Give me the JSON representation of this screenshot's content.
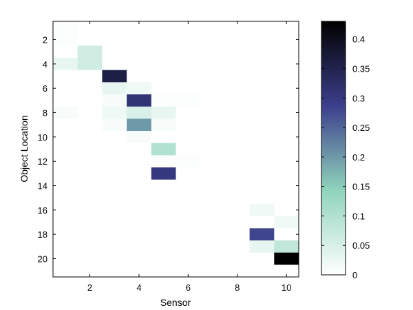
{
  "chart_data": {
    "type": "heatmap",
    "xlabel": "Sensor",
    "ylabel": "Object Location",
    "x_range": [
      0.5,
      10.5
    ],
    "y_range": [
      0.5,
      21.5
    ],
    "y_reversed": true,
    "x_ticks": [
      2,
      4,
      6,
      8,
      10
    ],
    "y_ticks": [
      2,
      4,
      6,
      8,
      10,
      12,
      14,
      16,
      18,
      20
    ],
    "x_values": [
      1,
      2,
      3,
      4,
      5,
      6,
      7,
      8,
      9,
      10
    ],
    "y_values": [
      1,
      2,
      3,
      4,
      5,
      6,
      7,
      8,
      9,
      10,
      11,
      12,
      13,
      14,
      15,
      16,
      17,
      18,
      19,
      20,
      21
    ],
    "values": [
      [
        0.005,
        0,
        0,
        0,
        0,
        0,
        0,
        0,
        0,
        0
      ],
      [
        0.005,
        0,
        0,
        0,
        0,
        0,
        0,
        0,
        0,
        0
      ],
      [
        0,
        0.06,
        0,
        0,
        0,
        0,
        0,
        0,
        0,
        0
      ],
      [
        0.03,
        0.06,
        0,
        0,
        0,
        0,
        0,
        0,
        0,
        0
      ],
      [
        0,
        0,
        0.36,
        0,
        0,
        0,
        0,
        0,
        0,
        0
      ],
      [
        0,
        0,
        0.03,
        0.02,
        0,
        0,
        0,
        0,
        0,
        0
      ],
      [
        0,
        0,
        0.01,
        0.31,
        0.005,
        0.005,
        0,
        0,
        0,
        0
      ],
      [
        0.01,
        0,
        0.02,
        0.05,
        0.03,
        0,
        0,
        0,
        0,
        0
      ],
      [
        0,
        0,
        0.01,
        0.2,
        0.01,
        0,
        0,
        0,
        0,
        0
      ],
      [
        0,
        0,
        0,
        0.01,
        0,
        0,
        0,
        0,
        0,
        0
      ],
      [
        0,
        0,
        0,
        0,
        0.1,
        0,
        0,
        0,
        0,
        0
      ],
      [
        0,
        0,
        0,
        0,
        0.005,
        0.005,
        0,
        0,
        0,
        0
      ],
      [
        0,
        0,
        0,
        0,
        0.3,
        0,
        0,
        0,
        0,
        0
      ],
      [
        0,
        0,
        0,
        0,
        0,
        0,
        0,
        0,
        0,
        0
      ],
      [
        0,
        0,
        0,
        0,
        0,
        0,
        0,
        0,
        0,
        0
      ],
      [
        0,
        0,
        0,
        0,
        0,
        0,
        0,
        0,
        0.02,
        0
      ],
      [
        0,
        0,
        0,
        0,
        0,
        0,
        0,
        0,
        0,
        0.02
      ],
      [
        0,
        0,
        0,
        0,
        0,
        0,
        0,
        0,
        0.28,
        0
      ],
      [
        0,
        0,
        0,
        0,
        0,
        0,
        0,
        0,
        0.03,
        0.08
      ],
      [
        0,
        0,
        0,
        0,
        0,
        0,
        0,
        0,
        0,
        0.43
      ],
      [
        0,
        0,
        0,
        0,
        0,
        0,
        0,
        0,
        0,
        0
      ]
    ],
    "colorbar": {
      "min": 0,
      "max": 0.43,
      "ticks": [
        0,
        0.05,
        0.1,
        0.15,
        0.2,
        0.25,
        0.3,
        0.35,
        0.4
      ],
      "tick_labels": [
        "0",
        "0.05",
        "0.1",
        "0.15",
        "0.2",
        "0.25",
        "0.3",
        "0.35",
        "0.4"
      ]
    },
    "colormap": [
      "#ffffff",
      "#8fd4bc",
      "#3c3f8c",
      "#000000"
    ],
    "grid": false
  }
}
